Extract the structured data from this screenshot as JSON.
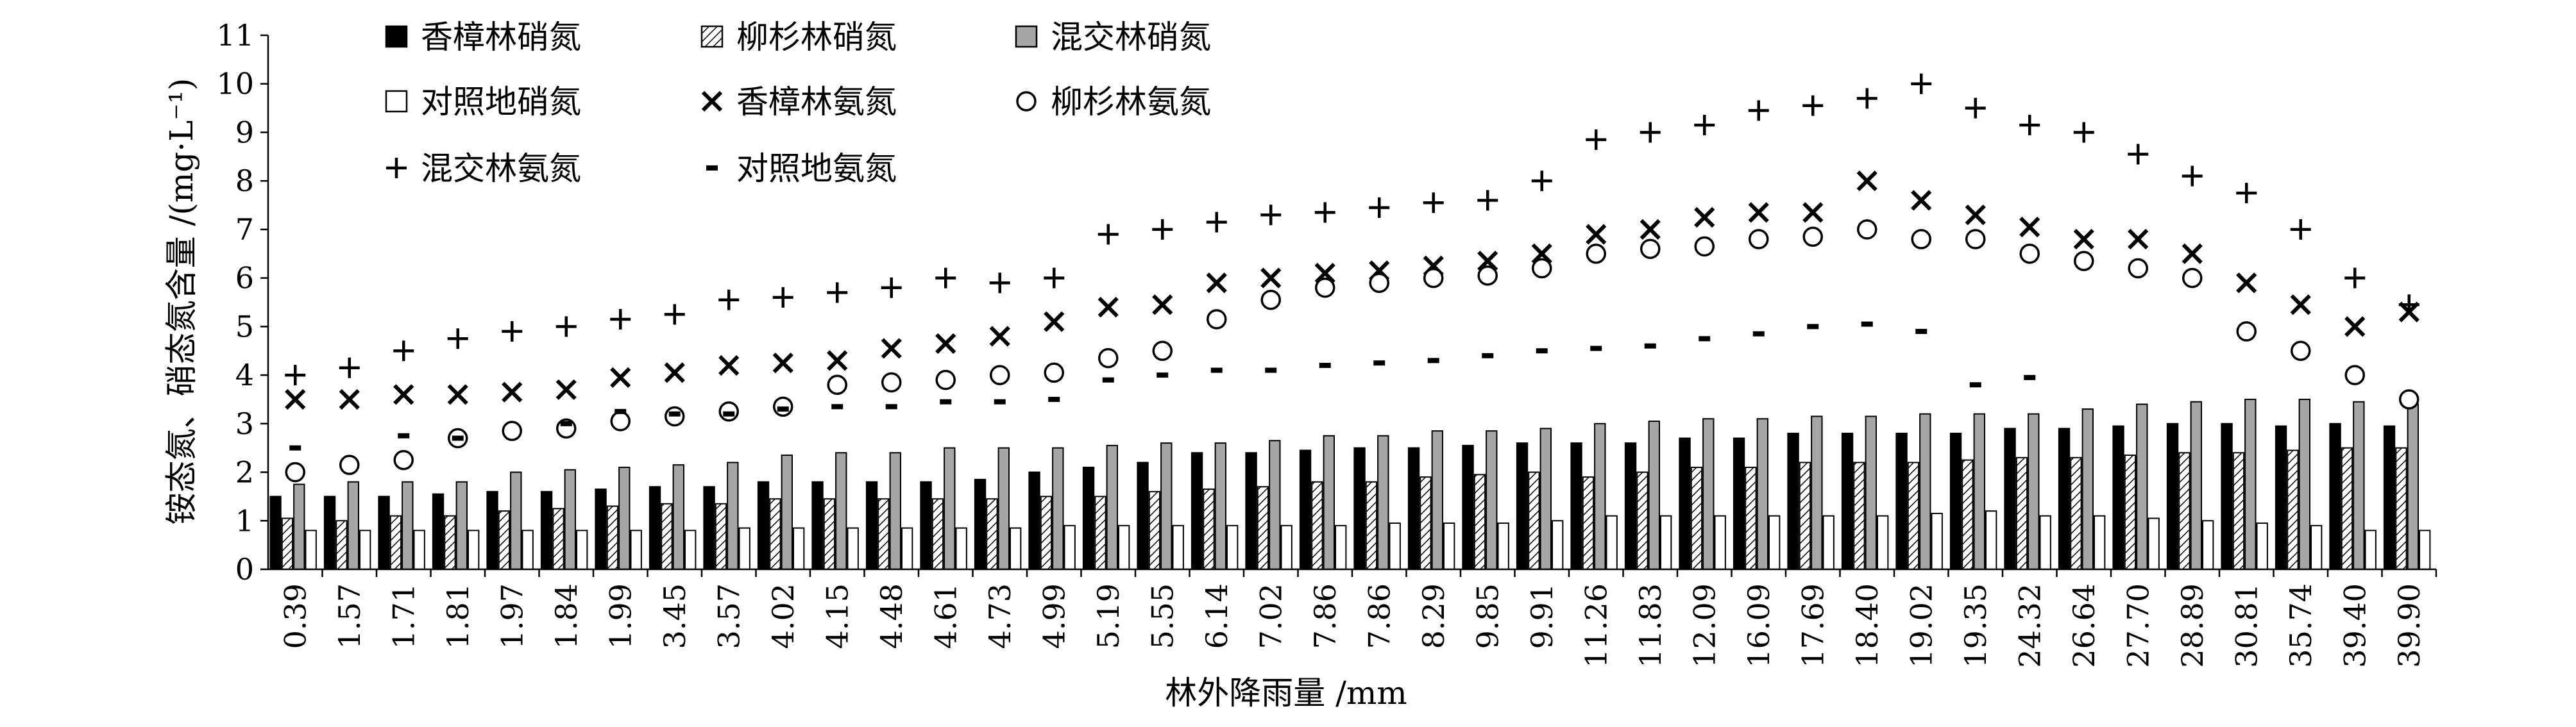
{
  "chart_data": {
    "type": "bar",
    "xlabel": "林外降雨量 /mm",
    "ylabel": "铵态氮、硝态氮含量 /(mg·L⁻¹)",
    "ylim": [
      0,
      11
    ],
    "yticks": [
      0,
      1,
      2,
      3,
      4,
      5,
      6,
      7,
      8,
      9,
      10,
      11
    ],
    "categories": [
      "0.39",
      "1.57",
      "1.71",
      "1.81",
      "1.97",
      "1.84",
      "1.99",
      "3.45",
      "3.57",
      "4.02",
      "4.15",
      "4.48",
      "4.61",
      "4.73",
      "4.99",
      "5.19",
      "5.55",
      "6.14",
      "7.02",
      "7.86",
      "7.86",
      "8.29",
      "9.85",
      "9.91",
      "11.26",
      "11.83",
      "12.09",
      "16.09",
      "17.69",
      "18.40",
      "19.02",
      "19.35",
      "24.32",
      "26.64",
      "27.70",
      "28.89",
      "30.81",
      "35.74",
      "39.40",
      "39.90"
    ],
    "grid": false,
    "legend_position": "top-left",
    "series": [
      {
        "name": "香樟林硝氮",
        "kind": "bar",
        "style": "black",
        "values": [
          1.5,
          1.5,
          1.5,
          1.55,
          1.6,
          1.6,
          1.65,
          1.7,
          1.7,
          1.8,
          1.8,
          1.8,
          1.8,
          1.85,
          2.0,
          2.1,
          2.2,
          2.4,
          2.4,
          2.45,
          2.5,
          2.5,
          2.55,
          2.6,
          2.6,
          2.6,
          2.7,
          2.7,
          2.8,
          2.8,
          2.8,
          2.8,
          2.9,
          2.9,
          2.95,
          3.0,
          3.0,
          2.95,
          3.0,
          2.95
        ]
      },
      {
        "name": "柳杉林硝氮",
        "kind": "bar",
        "style": "hatched",
        "values": [
          1.05,
          1.0,
          1.1,
          1.1,
          1.2,
          1.25,
          1.3,
          1.35,
          1.35,
          1.45,
          1.45,
          1.45,
          1.45,
          1.45,
          1.5,
          1.5,
          1.6,
          1.65,
          1.7,
          1.8,
          1.8,
          1.9,
          1.95,
          2.0,
          1.9,
          2.0,
          2.1,
          2.1,
          2.2,
          2.2,
          2.2,
          2.25,
          2.3,
          2.3,
          2.35,
          2.4,
          2.4,
          2.45,
          2.5,
          2.5
        ]
      },
      {
        "name": "混交林硝氮",
        "kind": "bar",
        "style": "gray",
        "values": [
          1.75,
          1.8,
          1.8,
          1.8,
          2.0,
          2.05,
          2.1,
          2.15,
          2.2,
          2.35,
          2.4,
          2.4,
          2.5,
          2.5,
          2.5,
          2.55,
          2.6,
          2.6,
          2.65,
          2.75,
          2.75,
          2.85,
          2.85,
          2.9,
          3.0,
          3.05,
          3.1,
          3.1,
          3.15,
          3.15,
          3.2,
          3.2,
          3.2,
          3.3,
          3.4,
          3.45,
          3.5,
          3.5,
          3.45,
          3.4
        ]
      },
      {
        "name": "对照地硝氮",
        "kind": "bar",
        "style": "white",
        "values": [
          0.8,
          0.8,
          0.8,
          0.8,
          0.8,
          0.8,
          0.8,
          0.8,
          0.85,
          0.85,
          0.85,
          0.85,
          0.85,
          0.85,
          0.9,
          0.9,
          0.9,
          0.9,
          0.9,
          0.9,
          0.95,
          0.95,
          0.95,
          1.0,
          1.1,
          1.1,
          1.1,
          1.1,
          1.1,
          1.1,
          1.15,
          1.2,
          1.1,
          1.1,
          1.05,
          1.0,
          0.95,
          0.9,
          0.8,
          0.8
        ]
      },
      {
        "name": "香樟林氨氮",
        "kind": "marker",
        "marker": "x",
        "values": [
          3.5,
          3.5,
          3.6,
          3.6,
          3.65,
          3.7,
          3.95,
          4.05,
          4.2,
          4.25,
          4.3,
          4.55,
          4.65,
          4.8,
          5.1,
          5.4,
          5.45,
          5.9,
          6.0,
          6.1,
          6.15,
          6.25,
          6.35,
          6.5,
          6.9,
          7.0,
          7.25,
          7.35,
          7.35,
          8.0,
          7.6,
          7.3,
          7.05,
          6.8,
          6.8,
          6.5,
          5.9,
          5.45,
          5.0,
          5.3
        ]
      },
      {
        "name": "柳杉林氨氮",
        "kind": "marker",
        "marker": "circle",
        "values": [
          2.0,
          2.15,
          2.25,
          2.7,
          2.85,
          2.9,
          3.05,
          3.15,
          3.25,
          3.35,
          3.8,
          3.85,
          3.9,
          4.0,
          4.05,
          4.35,
          4.5,
          5.15,
          5.55,
          5.8,
          5.9,
          6.0,
          6.05,
          6.2,
          6.5,
          6.6,
          6.65,
          6.8,
          6.85,
          7.0,
          6.8,
          6.8,
          6.5,
          6.35,
          6.2,
          6.0,
          4.9,
          4.5,
          4.0,
          3.5
        ]
      },
      {
        "name": "混交林氨氮",
        "kind": "marker",
        "marker": "plus",
        "values": [
          4.0,
          4.15,
          4.5,
          4.75,
          4.9,
          5.0,
          5.15,
          5.25,
          5.55,
          5.6,
          5.7,
          5.8,
          6.0,
          5.9,
          6.0,
          6.9,
          7.0,
          7.15,
          7.3,
          7.35,
          7.45,
          7.55,
          7.6,
          8.0,
          8.85,
          9.0,
          9.15,
          9.45,
          9.55,
          9.7,
          10.0,
          9.5,
          9.15,
          9.0,
          8.55,
          8.1,
          7.75,
          7.0,
          6.0,
          5.45
        ]
      },
      {
        "name": "对照地氨氮",
        "kind": "marker",
        "marker": "dash",
        "values": [
          2.5,
          null,
          2.75,
          2.7,
          null,
          3.0,
          3.25,
          3.2,
          3.2,
          3.3,
          3.35,
          3.35,
          3.45,
          3.45,
          3.5,
          3.9,
          4.0,
          4.1,
          4.1,
          4.2,
          4.25,
          4.3,
          4.4,
          4.5,
          4.55,
          4.6,
          4.75,
          4.85,
          5.0,
          5.05,
          4.9,
          3.8,
          3.95,
          null,
          null,
          null,
          null,
          null,
          null,
          null
        ]
      }
    ]
  }
}
